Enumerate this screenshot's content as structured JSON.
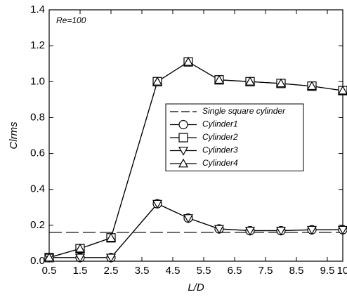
{
  "chart_data": {
    "type": "line",
    "annotation": "Re=100",
    "x_label": "L/D",
    "y_label": "Clrms",
    "x": [
      0.5,
      1.5,
      2.5,
      4,
      5,
      6,
      7,
      8,
      9,
      10
    ],
    "series": [
      {
        "name": "Single square cylinder",
        "color": "#000000",
        "dash": true,
        "marker": "none",
        "x": [
          0.5,
          10
        ],
        "values": [
          0.16,
          0.16
        ]
      },
      {
        "name": "Cylinder1",
        "color": "#000000",
        "marker": "circle",
        "values": [
          0.02,
          0.02,
          0.02,
          0.32,
          0.24,
          0.18,
          0.17,
          0.17,
          0.175,
          0.175
        ]
      },
      {
        "name": "Cylinder2",
        "color": "#000000",
        "marker": "square",
        "values": [
          0.02,
          0.07,
          0.13,
          1.0,
          1.11,
          1.01,
          1.0,
          0.99,
          0.975,
          0.95
        ]
      },
      {
        "name": "Cylinder3",
        "color": "#000000",
        "marker": "triangle-down",
        "values": [
          0.02,
          0.02,
          0.02,
          0.32,
          0.24,
          0.18,
          0.17,
          0.17,
          0.175,
          0.175
        ]
      },
      {
        "name": "Cylinder4",
        "color": "#000000",
        "marker": "triangle-up",
        "values": [
          0.02,
          0.07,
          0.13,
          1.0,
          1.11,
          1.01,
          1.0,
          0.99,
          0.975,
          0.95
        ]
      }
    ],
    "xlim": [
      0.5,
      10
    ],
    "ylim": [
      0,
      1.4
    ],
    "xticks": [
      0.5,
      1.5,
      2.5,
      3.5,
      4.5,
      5.5,
      6.5,
      7.5,
      8.5,
      9.5,
      10
    ],
    "yticks": [
      {
        "value": 0,
        "label": "0.0"
      },
      0.2,
      0.4,
      0.6,
      0.8,
      {
        "value": 1,
        "label": "1.0"
      },
      1.2,
      1.4
    ],
    "legend": "center-right",
    "grid": false
  }
}
